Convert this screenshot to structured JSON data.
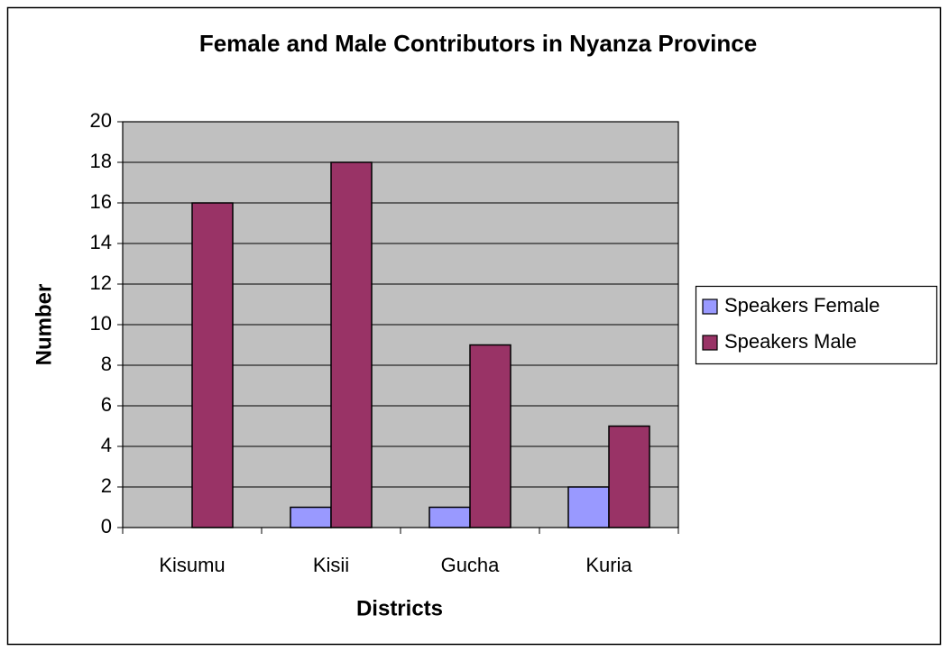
{
  "chart_data": {
    "type": "bar",
    "title": "Female and Male Contributors in Nyanza Province",
    "x_label": "Districts",
    "y_label": "Number",
    "categories": [
      "Kisumu",
      "Kisii",
      "Gucha",
      "Kuria"
    ],
    "series": [
      {
        "name": "Speakers Female",
        "color": "#9999ff",
        "values": [
          0,
          1,
          1,
          2
        ]
      },
      {
        "name": "Speakers Male",
        "color": "#993366",
        "values": [
          16,
          18,
          9,
          5
        ]
      }
    ],
    "ylim": [
      0,
      20
    ],
    "yticks": [
      0,
      2,
      4,
      6,
      8,
      10,
      12,
      14,
      16,
      18,
      20
    ],
    "grid": true,
    "legend": "right"
  }
}
